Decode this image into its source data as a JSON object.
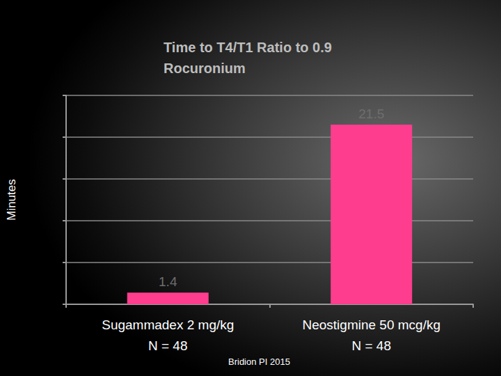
{
  "chart_data": {
    "type": "bar",
    "title": "Time to T4/T1 Ratio to 0.9\nRocuronium",
    "y_label": "Minutes",
    "categories": [
      "Sugammadex 2 mg/kg\nN = 48",
      "Neostigmine 50 mcg/kg\nN = 48"
    ],
    "values": [
      1.4,
      21.5
    ],
    "color": "#ff3d8e",
    "ylim": [
      0,
      25
    ],
    "yticks": [
      0,
      5,
      10,
      15,
      20,
      25
    ],
    "grid": true,
    "data_labels": true,
    "tick_labels": "x",
    "annotations": [
      "Bridion PI 2015"
    ]
  }
}
